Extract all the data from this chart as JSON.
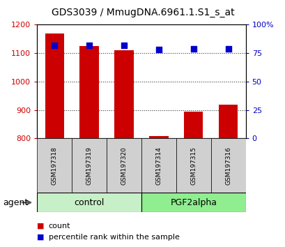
{
  "title": "GDS3039 / MmugDNA.6961.1.S1_s_at",
  "samples": [
    "GSM197318",
    "GSM197319",
    "GSM197320",
    "GSM197314",
    "GSM197315",
    "GSM197316"
  ],
  "counts": [
    1168,
    1125,
    1110,
    807,
    893,
    918
  ],
  "percentile_ranks": [
    82,
    82,
    82,
    78,
    79,
    79
  ],
  "groups": [
    "control",
    "control",
    "control",
    "PGF2alpha",
    "PGF2alpha",
    "PGF2alpha"
  ],
  "group_colors": {
    "control": "#c8f0c8",
    "PGF2alpha": "#90ee90"
  },
  "ylim_left": [
    800,
    1200
  ],
  "ylim_right": [
    0,
    100
  ],
  "yticks_left": [
    800,
    900,
    1000,
    1100,
    1200
  ],
  "yticks_right": [
    0,
    25,
    50,
    75,
    100
  ],
  "yticklabels_right": [
    "0",
    "25",
    "50",
    "75",
    "100%"
  ],
  "bar_color": "#cc0000",
  "dot_color": "#0000cc",
  "bar_width": 0.55,
  "dot_size": 30,
  "background_color": "#ffffff",
  "plot_bg_color": "#ffffff",
  "grid_color": "#333333",
  "tick_label_color_left": "#cc0000",
  "tick_label_color_right": "#0000cc",
  "legend_count_color": "#cc0000",
  "legend_pct_color": "#0000cc",
  "agent_label": "agent",
  "group_label_fontsize": 9,
  "title_fontsize": 10,
  "sample_fontsize": 6.5,
  "sample_box_color": "#d0d0d0"
}
